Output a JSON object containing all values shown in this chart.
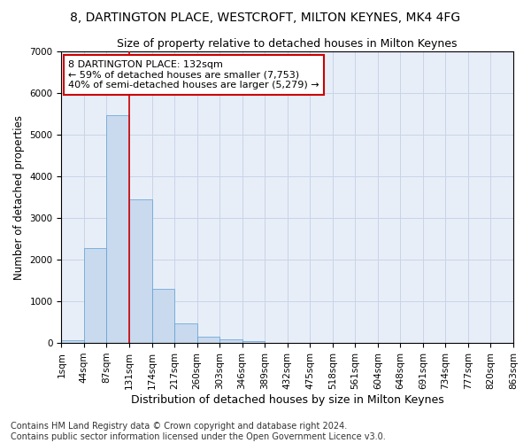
{
  "title1": "8, DARTINGTON PLACE, WESTCROFT, MILTON KEYNES, MK4 4FG",
  "title2": "Size of property relative to detached houses in Milton Keynes",
  "xlabel": "Distribution of detached houses by size in Milton Keynes",
  "ylabel": "Number of detached properties",
  "bar_values": [
    75,
    2275,
    5480,
    3440,
    1310,
    470,
    155,
    90,
    55,
    0,
    0,
    0,
    0,
    0,
    0,
    0,
    0,
    0,
    0,
    0
  ],
  "bin_labels": [
    "1sqm",
    "44sqm",
    "87sqm",
    "131sqm",
    "174sqm",
    "217sqm",
    "260sqm",
    "303sqm",
    "346sqm",
    "389sqm",
    "432sqm",
    "475sqm",
    "518sqm",
    "561sqm",
    "604sqm",
    "648sqm",
    "691sqm",
    "734sqm",
    "777sqm",
    "820sqm",
    "863sqm"
  ],
  "bar_color": "#c9d9ee",
  "bar_edge_color": "#5a9fd4",
  "grid_color": "#c8d4e8",
  "background_color": "#e8eef8",
  "red_line_x": 3,
  "annotation_text": "8 DARTINGTON PLACE: 132sqm\n← 59% of detached houses are smaller (7,753)\n40% of semi-detached houses are larger (5,279) →",
  "annotation_box_color": "#ffffff",
  "annotation_box_edge": "#cc0000",
  "red_line_color": "#cc0000",
  "ylim": [
    0,
    7000
  ],
  "footnote": "Contains HM Land Registry data © Crown copyright and database right 2024.\nContains public sector information licensed under the Open Government Licence v3.0.",
  "title_fontsize": 10,
  "subtitle_fontsize": 9,
  "xlabel_fontsize": 9,
  "ylabel_fontsize": 8.5,
  "tick_fontsize": 7.5,
  "annotation_fontsize": 8,
  "footnote_fontsize": 7
}
